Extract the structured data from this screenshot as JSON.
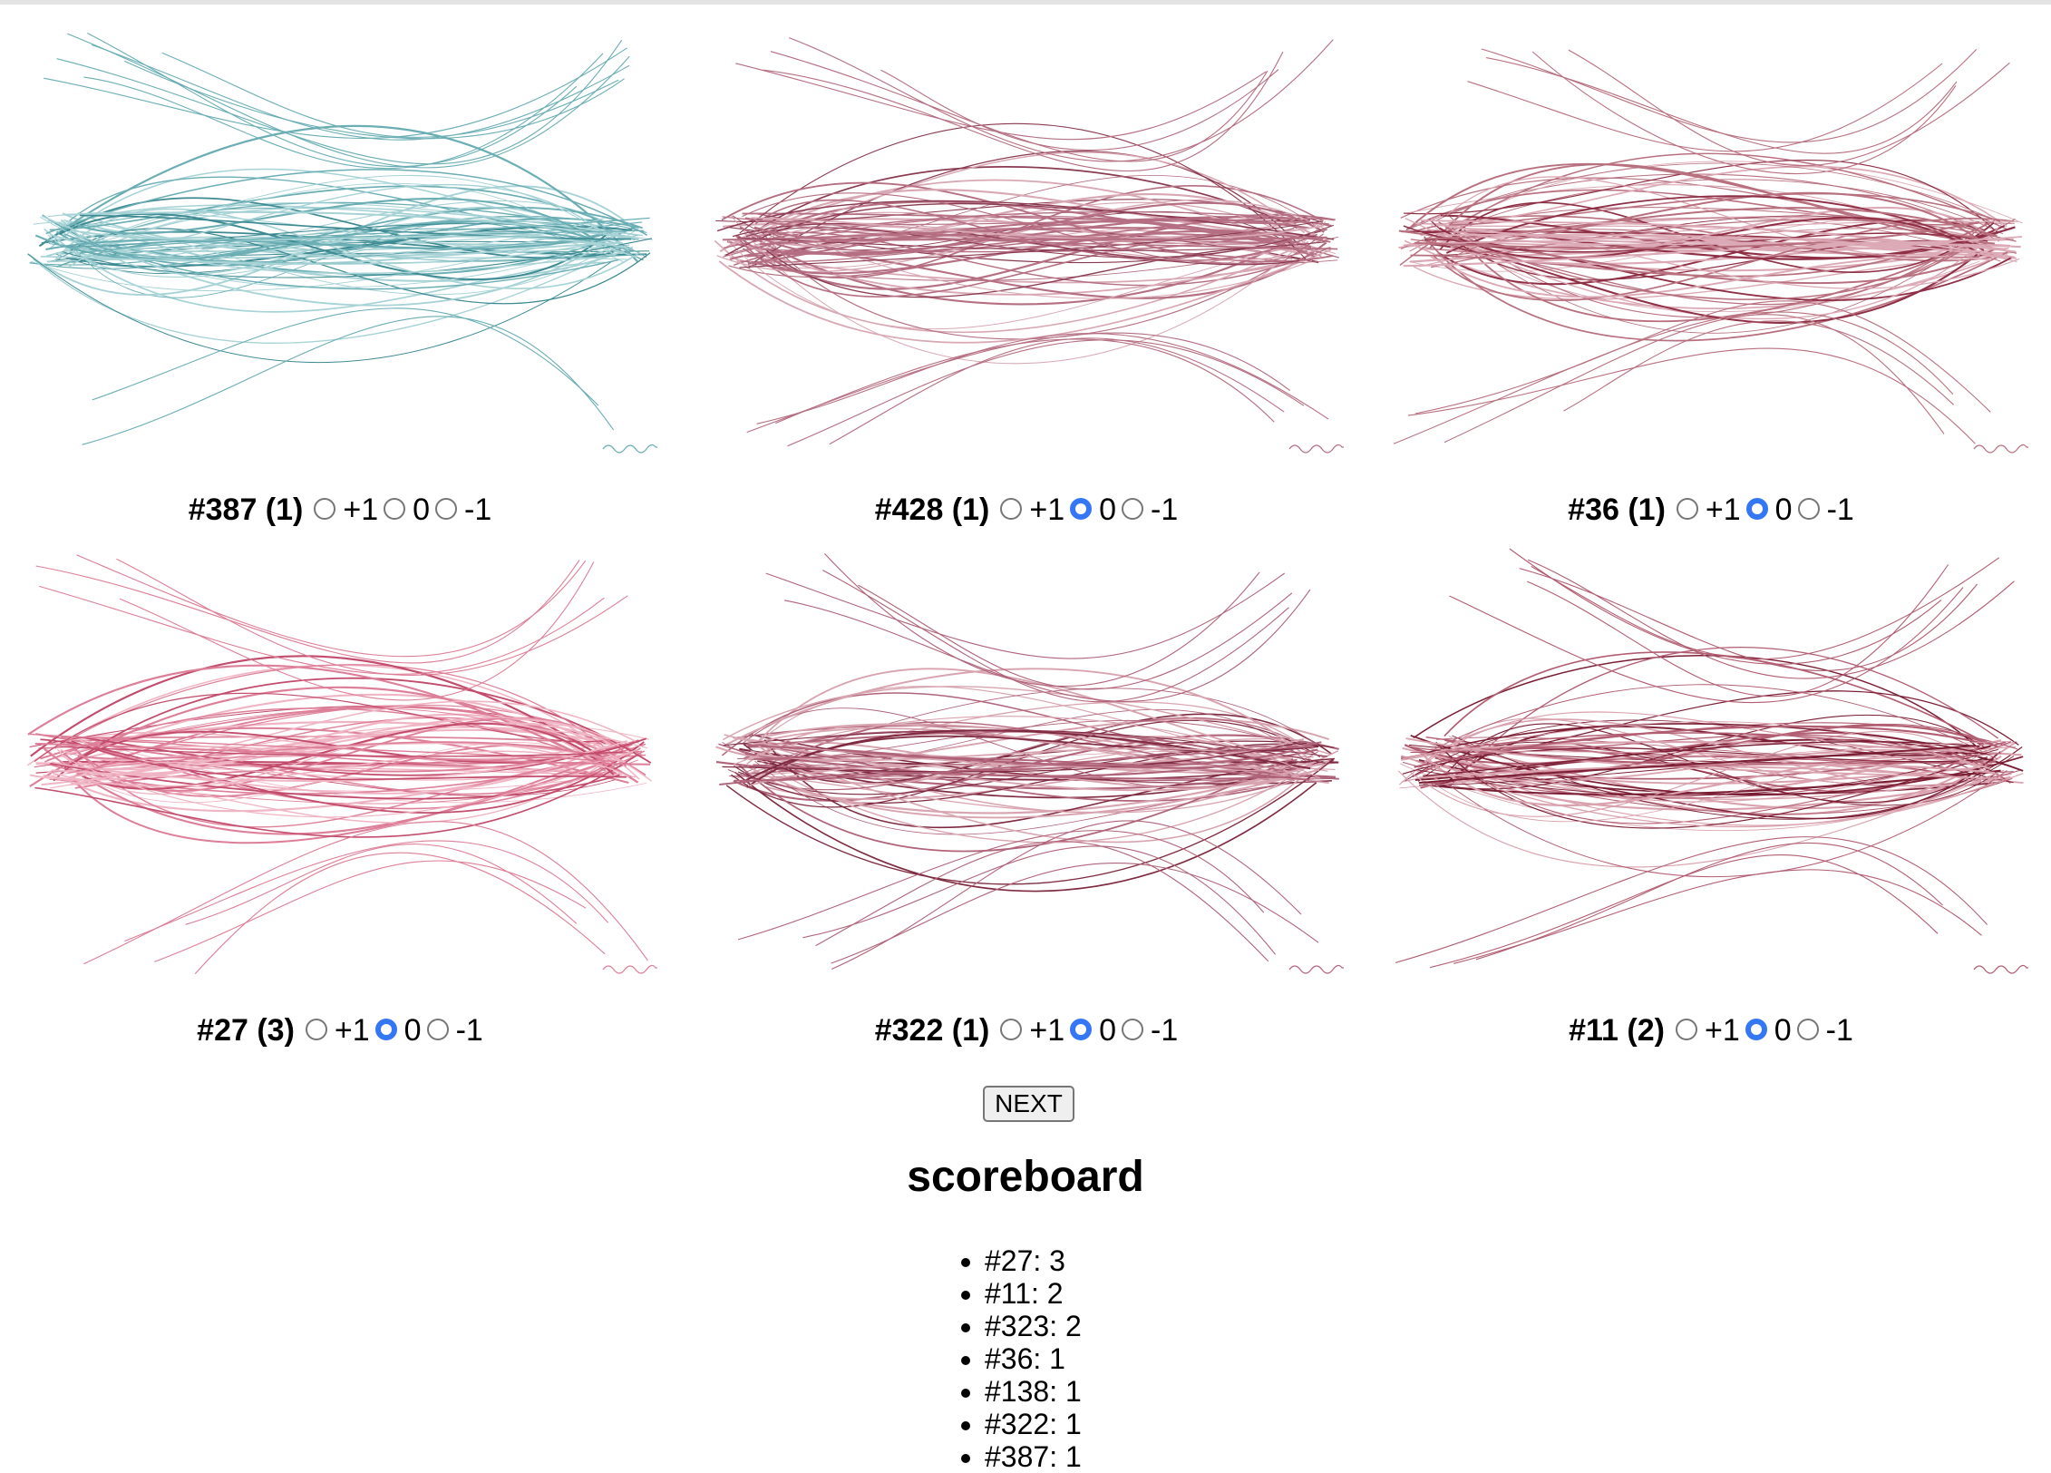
{
  "gallery": {
    "cards": [
      {
        "title": "#387 (1)",
        "selected": null,
        "palette": {
          "light": "#a8d3d6",
          "mid": "#6aaeb4",
          "dark": "#3e8a92"
        }
      },
      {
        "title": "#428 (1)",
        "selected": "0",
        "palette": {
          "light": "#d8a8b4",
          "mid": "#b56f82",
          "dark": "#8a3a50"
        }
      },
      {
        "title": "#36 (1)",
        "selected": "0",
        "palette": {
          "light": "#dcaab6",
          "mid": "#b8707f",
          "dark": "#8e2f45"
        }
      },
      {
        "title": "#27 (3)",
        "selected": "0",
        "palette": {
          "light": "#f0b5c4",
          "mid": "#dd7f98",
          "dark": "#c24c6c"
        }
      },
      {
        "title": "#322 (1)",
        "selected": "0",
        "palette": {
          "light": "#d8a4b0",
          "mid": "#b0647a",
          "dark": "#7e2a40"
        }
      },
      {
        "title": "#11 (2)",
        "selected": "0",
        "palette": {
          "light": "#d9a2ae",
          "mid": "#b25e72",
          "dark": "#7a1e34"
        }
      }
    ],
    "options": {
      "plus": "+1",
      "zero": "0",
      "minus": "-1"
    }
  },
  "next_label": "NEXT",
  "scoreboard": {
    "title": "scoreboard",
    "entries": [
      "#27: 3",
      "#11: 2",
      "#323: 2",
      "#36: 1",
      "#138: 1",
      "#322: 1",
      "#387: 1"
    ]
  }
}
